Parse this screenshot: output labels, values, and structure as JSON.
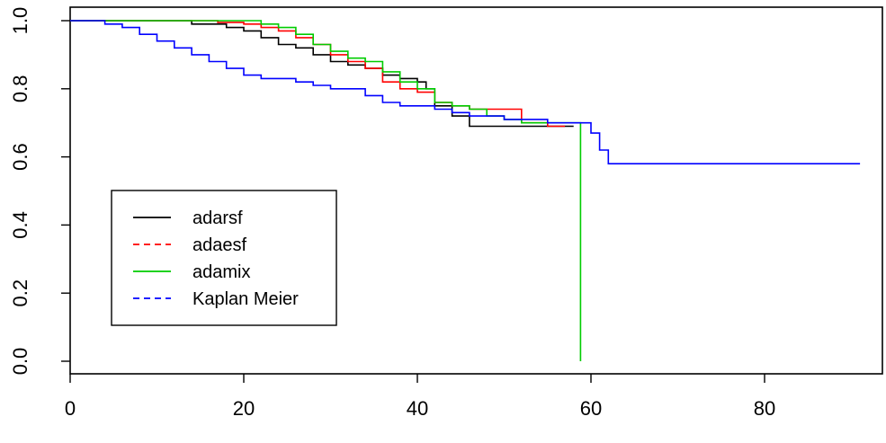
{
  "chart_data": {
    "type": "line",
    "title": "",
    "xlabel": "",
    "ylabel": "",
    "xlim": [
      0,
      95
    ],
    "ylim": [
      0,
      1.0
    ],
    "x_ticks": [
      0,
      20,
      40,
      60,
      80
    ],
    "y_ticks": [
      0.0,
      0.2,
      0.4,
      0.6,
      0.8,
      1.0
    ],
    "x_tick_labels": [
      "0",
      "20",
      "40",
      "60",
      "80"
    ],
    "y_tick_labels": [
      "0.0",
      "0.2",
      "0.4",
      "0.6",
      "0.8",
      "1.0"
    ],
    "grid": false,
    "legend_placement": "bottom-left",
    "series": [
      {
        "name": "adarsf",
        "color": "#000000",
        "dash": "solid",
        "points": [
          [
            0,
            1.0
          ],
          [
            10,
            1.0
          ],
          [
            14,
            0.99
          ],
          [
            18,
            0.98
          ],
          [
            20,
            0.97
          ],
          [
            22,
            0.95
          ],
          [
            24,
            0.93
          ],
          [
            26,
            0.92
          ],
          [
            28,
            0.9
          ],
          [
            30,
            0.88
          ],
          [
            32,
            0.87
          ],
          [
            34,
            0.86
          ],
          [
            36,
            0.84
          ],
          [
            38,
            0.83
          ],
          [
            40,
            0.82
          ],
          [
            41,
            0.8
          ],
          [
            42,
            0.75
          ],
          [
            44,
            0.72
          ],
          [
            46,
            0.69
          ],
          [
            50,
            0.69
          ],
          [
            54,
            0.69
          ],
          [
            58,
            0.69
          ]
        ]
      },
      {
        "name": "adaesf",
        "color": "#ff0000",
        "dash": "dashed",
        "points": [
          [
            0,
            1.0
          ],
          [
            15,
            1.0
          ],
          [
            17,
            0.995
          ],
          [
            20,
            0.99
          ],
          [
            22,
            0.98
          ],
          [
            24,
            0.97
          ],
          [
            26,
            0.95
          ],
          [
            28,
            0.93
          ],
          [
            30,
            0.9
          ],
          [
            32,
            0.88
          ],
          [
            34,
            0.86
          ],
          [
            36,
            0.82
          ],
          [
            38,
            0.8
          ],
          [
            40,
            0.79
          ],
          [
            42,
            0.76
          ],
          [
            44,
            0.75
          ],
          [
            46,
            0.74
          ],
          [
            48,
            0.74
          ],
          [
            50,
            0.74
          ],
          [
            52,
            0.7
          ],
          [
            55,
            0.69
          ],
          [
            57,
            0.69
          ]
        ]
      },
      {
        "name": "adamix",
        "color": "#00cc00",
        "dash": "solid",
        "points": [
          [
            0,
            1.0
          ],
          [
            19,
            1.0
          ],
          [
            22,
            0.99
          ],
          [
            24,
            0.98
          ],
          [
            26,
            0.96
          ],
          [
            28,
            0.93
          ],
          [
            30,
            0.91
          ],
          [
            32,
            0.89
          ],
          [
            34,
            0.88
          ],
          [
            36,
            0.85
          ],
          [
            38,
            0.82
          ],
          [
            40,
            0.8
          ],
          [
            42,
            0.76
          ],
          [
            44,
            0.75
          ],
          [
            46,
            0.74
          ],
          [
            48,
            0.72
          ],
          [
            50,
            0.71
          ],
          [
            52,
            0.7
          ],
          [
            55,
            0.7
          ],
          [
            57,
            0.7
          ],
          [
            58.8,
            0.7
          ],
          [
            58.8,
            0.0
          ]
        ]
      },
      {
        "name": "Kaplan Meier",
        "color": "#0000ff",
        "dash": "dashed",
        "points": [
          [
            0,
            1.0
          ],
          [
            4,
            0.99
          ],
          [
            6,
            0.98
          ],
          [
            8,
            0.96
          ],
          [
            10,
            0.94
          ],
          [
            12,
            0.92
          ],
          [
            14,
            0.9
          ],
          [
            16,
            0.88
          ],
          [
            18,
            0.86
          ],
          [
            20,
            0.84
          ],
          [
            22,
            0.83
          ],
          [
            26,
            0.82
          ],
          [
            28,
            0.81
          ],
          [
            30,
            0.8
          ],
          [
            34,
            0.78
          ],
          [
            36,
            0.76
          ],
          [
            38,
            0.75
          ],
          [
            40,
            0.75
          ],
          [
            42,
            0.74
          ],
          [
            44,
            0.73
          ],
          [
            46,
            0.72
          ],
          [
            50,
            0.71
          ],
          [
            55,
            0.7
          ],
          [
            58,
            0.7
          ],
          [
            60,
            0.67
          ],
          [
            61,
            0.62
          ],
          [
            62,
            0.58
          ],
          [
            91,
            0.58
          ]
        ]
      }
    ]
  }
}
